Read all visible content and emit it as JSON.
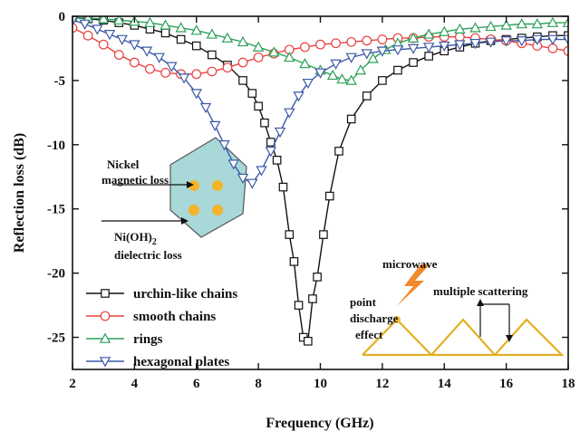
{
  "chart_data": {
    "type": "line",
    "xlabel": "Frequency (GHz)",
    "ylabel": "Reflection loss (dB)",
    "xlim": [
      2,
      18
    ],
    "ylim": [
      -27.5,
      0
    ],
    "xticks": [
      2,
      4,
      6,
      8,
      10,
      12,
      14,
      16,
      18
    ],
    "yticks": [
      0,
      -5,
      -10,
      -15,
      -20,
      -25
    ],
    "grid": false,
    "legend_position": "bottom-left",
    "series": [
      {
        "name": "urchin-like chains",
        "color": "#111111",
        "marker": "square",
        "x": [
          2,
          2.5,
          3,
          3.5,
          4,
          4.5,
          5,
          5.5,
          6,
          6.5,
          7,
          7.5,
          7.8,
          8.0,
          8.2,
          8.4,
          8.6,
          8.8,
          9.0,
          9.15,
          9.3,
          9.45,
          9.6,
          9.75,
          9.9,
          10.1,
          10.3,
          10.6,
          11.0,
          11.5,
          12,
          12.5,
          13,
          13.5,
          14,
          14.5,
          15,
          15.5,
          16,
          16.5,
          17,
          17.5,
          18
        ],
        "y": [
          -0.1,
          -0.2,
          -0.3,
          -0.5,
          -0.7,
          -1.0,
          -1.3,
          -1.8,
          -2.3,
          -3.0,
          -3.8,
          -5.0,
          -6.0,
          -7.0,
          -8.3,
          -9.8,
          -11.2,
          -13.3,
          -17.0,
          -19.1,
          -22.5,
          -25.0,
          -25.3,
          -22.0,
          -20.3,
          -17.0,
          -14.0,
          -10.5,
          -8.0,
          -6.2,
          -5.0,
          -4.2,
          -3.6,
          -3.1,
          -2.7,
          -2.4,
          -2.1,
          -1.9,
          -1.8,
          -1.7,
          -1.6,
          -1.5,
          -1.5
        ]
      },
      {
        "name": "smooth chains",
        "color": "#e8413f",
        "marker": "circle",
        "x": [
          2,
          2.5,
          3,
          3.5,
          4,
          4.5,
          5,
          5.5,
          6,
          6.5,
          7,
          7.5,
          8,
          8.5,
          9,
          9.5,
          10,
          10.5,
          11,
          11.5,
          12,
          12.5,
          13,
          13.5,
          14,
          14.5,
          15,
          15.5,
          16,
          16.5,
          17,
          17.5,
          18
        ],
        "y": [
          -0.9,
          -1.5,
          -2.2,
          -3.0,
          -3.6,
          -4.1,
          -4.4,
          -4.5,
          -4.5,
          -4.3,
          -4.0,
          -3.6,
          -3.2,
          -2.9,
          -2.6,
          -2.4,
          -2.2,
          -2.1,
          -2.0,
          -1.9,
          -1.8,
          -1.7,
          -1.7,
          -1.6,
          -1.6,
          -1.6,
          -1.7,
          -1.8,
          -1.9,
          -2.1,
          -2.3,
          -2.5,
          -2.7
        ]
      },
      {
        "name": "rings",
        "color": "#2ea05a",
        "marker": "triangle-up",
        "x": [
          2,
          2.5,
          3,
          3.5,
          4,
          4.5,
          5,
          5.5,
          6,
          6.5,
          7,
          7.5,
          8,
          8.5,
          9,
          9.5,
          10,
          10.4,
          10.7,
          11.0,
          11.3,
          11.7,
          12.1,
          12.5,
          13,
          13.5,
          14,
          14.5,
          15,
          15.5,
          16,
          16.5,
          17,
          17.5,
          18
        ],
        "y": [
          -0.1,
          -0.15,
          -0.2,
          -0.3,
          -0.4,
          -0.5,
          -0.7,
          -0.9,
          -1.1,
          -1.4,
          -1.7,
          -2.0,
          -2.4,
          -2.8,
          -3.2,
          -3.7,
          -4.2,
          -4.6,
          -4.9,
          -5.0,
          -4.2,
          -3.3,
          -2.6,
          -2.1,
          -1.7,
          -1.4,
          -1.2,
          -1.0,
          -0.9,
          -0.8,
          -0.7,
          -0.6,
          -0.6,
          -0.5,
          -0.5
        ]
      },
      {
        "name": "hexagonal plates",
        "color": "#3d5aa8",
        "marker": "triangle-down",
        "x": [
          2,
          2.4,
          2.8,
          3.2,
          3.6,
          4,
          4.4,
          4.8,
          5.2,
          5.6,
          6.0,
          6.3,
          6.6,
          6.9,
          7.2,
          7.5,
          7.8,
          8.1,
          8.4,
          8.7,
          9.0,
          9.3,
          9.6,
          10.0,
          10.5,
          11,
          11.5,
          12,
          12.5,
          13,
          13.5,
          14,
          14.5,
          15,
          15.5,
          16,
          16.5,
          17,
          17.5,
          18
        ],
        "y": [
          -0.3,
          -0.6,
          -1.0,
          -1.4,
          -1.8,
          -2.2,
          -2.7,
          -3.2,
          -3.9,
          -4.8,
          -6.0,
          -7.1,
          -8.5,
          -10.0,
          -11.5,
          -12.6,
          -13.0,
          -12.0,
          -10.5,
          -9.0,
          -7.5,
          -6.2,
          -5.2,
          -4.4,
          -3.7,
          -3.2,
          -2.9,
          -2.7,
          -2.6,
          -2.5,
          -2.4,
          -2.3,
          -2.2,
          -2.1,
          -2.0,
          -1.9,
          -1.9,
          -1.8,
          -1.8,
          -1.8
        ]
      }
    ],
    "annotations": {
      "nickel_line1": "Nickel",
      "nickel_line2": "magnetic loss",
      "nioh_prefix": "Ni(OH)",
      "nioh_subscript": "2",
      "nioh_line2": "dielectric loss",
      "microwave": "microwave",
      "multiple_scattering": "multiple scattering",
      "point_line1": "point",
      "point_line2": "discharge",
      "point_line3": "effect"
    }
  }
}
